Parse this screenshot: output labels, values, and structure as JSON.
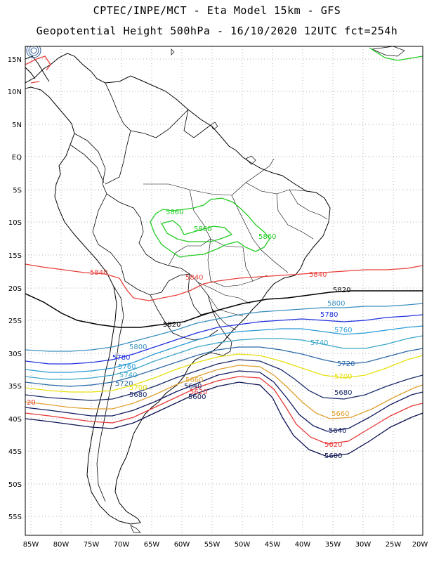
{
  "title_line1": "CPTEC/INPE/MCT -  Eta Model 15km - GFS",
  "title_line2": "Geopotential Height 500hPa - 16/10/2020 12UTC fct=254h",
  "lat_labels": [
    "15N",
    "10N",
    "5N",
    "EQ",
    "5S",
    "10S",
    "15S",
    "20S",
    "25S",
    "30S",
    "35S",
    "40S",
    "45S",
    "50S",
    "55S"
  ],
  "lon_labels": [
    "85W",
    "80W",
    "75W",
    "70W",
    "65W",
    "60W",
    "55W",
    "50W",
    "45W",
    "40W",
    "35W",
    "30W",
    "25W",
    "20W"
  ],
  "contour_labels": {
    "c5860a": "5860",
    "c5860b": "5860",
    "c5860c": "5860",
    "c5840a": "5840",
    "c5840b": "5840",
    "c5840c": "5840",
    "c5820a": "5820",
    "c5820b": "5820",
    "c5800a": "5800",
    "c5800b": "5800",
    "c5780a": "5780",
    "c5780b": "5780",
    "c5760a": "5760",
    "c5760b": "5760",
    "c5740a": "5740",
    "c5740b": "5740",
    "c5720a": "5720",
    "c5720b": "5720",
    "c5700a": "5700",
    "c5700b": "5700",
    "c5680a": "5680",
    "c5680b": "5680",
    "c5660a": "5660",
    "c5660b": "5660",
    "c5640a": "5640",
    "c5640b": "5640",
    "c5620a": "5620",
    "c5620b": "5620",
    "c5620c": "20",
    "c5600a": "5600",
    "c5600b": "5600"
  },
  "colors": {
    "c5860": "#22cc22",
    "c5840": "#e8403a",
    "c5820": "#000000",
    "c5800": "#3a8fbf",
    "c5780": "#2030e0",
    "c5760": "#2a9bd6",
    "c5740": "#3aa6c8",
    "c5720": "#2c6aa8",
    "c5700": "#e6e010",
    "c5680": "#1a2a6a",
    "c5660": "#e0a030",
    "c5640": "#101a60",
    "c5620": "#e83838",
    "c5600": "#0a1050"
  }
}
